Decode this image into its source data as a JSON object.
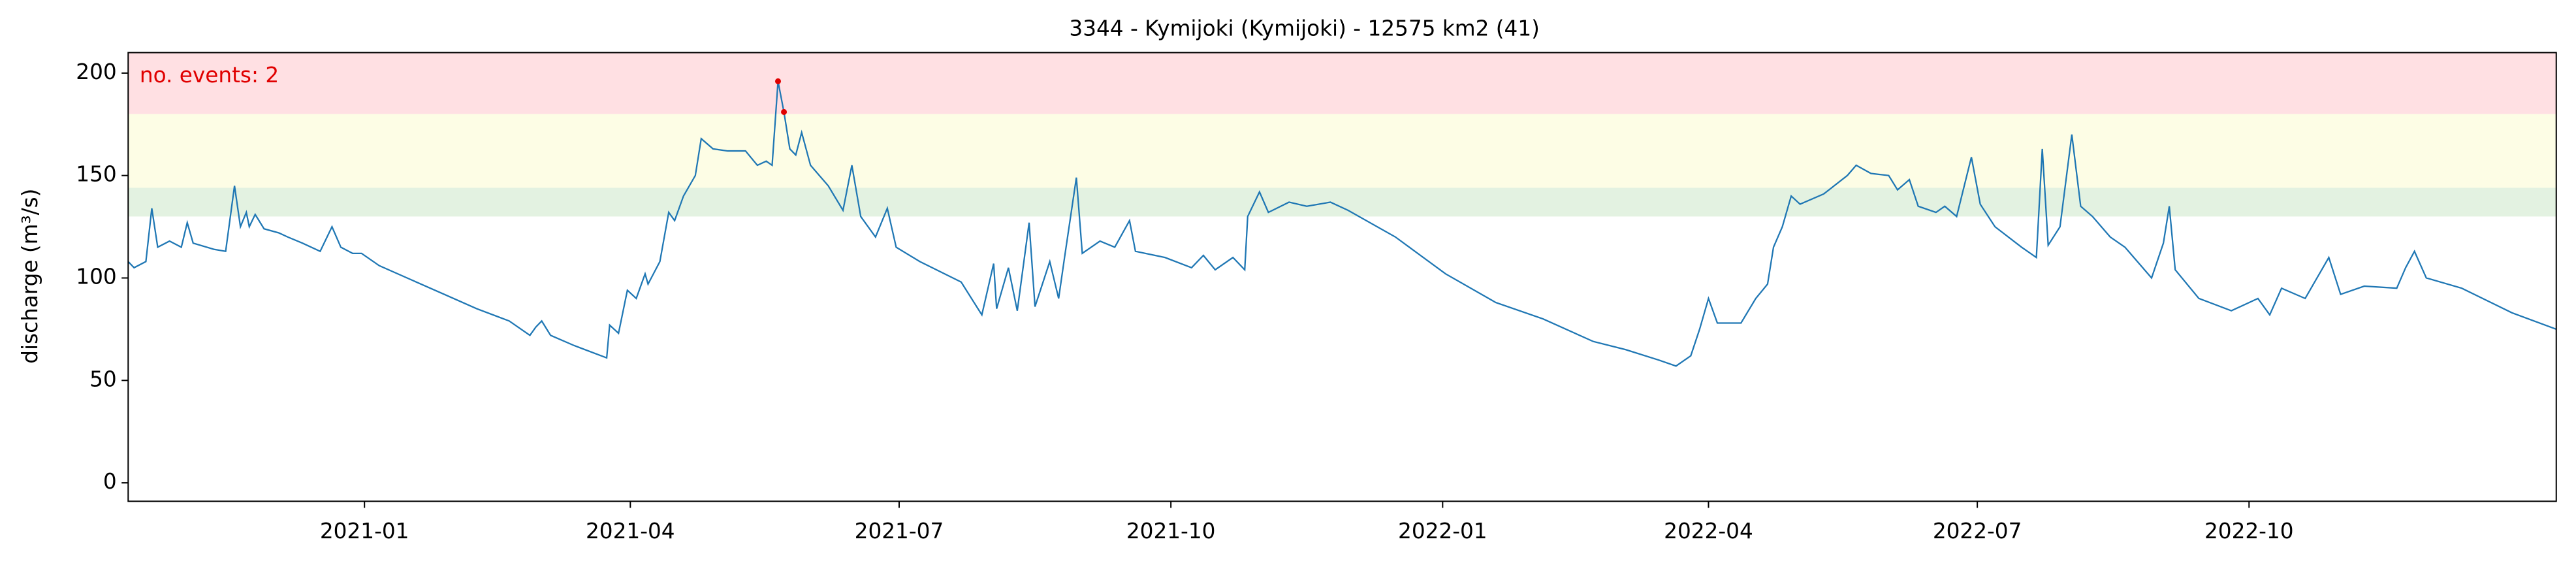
{
  "chart_data": {
    "type": "line",
    "title": "3344 - Kymijoki (Kymijoki) - 12575 km2 (41)",
    "y_label": "discharge (m³/s)",
    "annotation": "no. events: 2",
    "annotation_color": "#e00000",
    "xlim": [
      18548,
      19370
    ],
    "xticks": [
      {
        "value": 18628,
        "label": "2021-01"
      },
      {
        "value": 18718,
        "label": "2021-04"
      },
      {
        "value": 18809,
        "label": "2021-07"
      },
      {
        "value": 18901,
        "label": "2021-10"
      },
      {
        "value": 18993,
        "label": "2022-01"
      },
      {
        "value": 19083,
        "label": "2022-04"
      },
      {
        "value": 19174,
        "label": "2022-07"
      },
      {
        "value": 19266,
        "label": "2022-10"
      }
    ],
    "ylim": [
      -9,
      210
    ],
    "yticks": [
      0,
      50,
      100,
      150,
      200
    ],
    "bands": [
      {
        "range": [
          180,
          210
        ],
        "color": "#ffe0e3"
      },
      {
        "range": [
          144,
          180
        ],
        "color": "#fdfde5"
      },
      {
        "range": [
          130,
          144
        ],
        "color": "#e3f2e1"
      }
    ],
    "series": [
      {
        "type": "line",
        "color": "#1f77b4",
        "x": [
          18548,
          18550,
          18554,
          18556,
          18558,
          18562,
          18566,
          18568,
          18570,
          18577,
          18581,
          18584,
          18586,
          18588,
          18589,
          18591,
          18594,
          18599,
          18602,
          18607,
          18613,
          18617,
          18620,
          18624,
          18627,
          18633,
          18644,
          18655,
          18666,
          18677,
          18684,
          18686,
          18688,
          18691,
          18699,
          18710,
          18711,
          18714,
          18717,
          18720,
          18723,
          18724,
          18728,
          18731,
          18733,
          18736,
          18740,
          18742,
          18746,
          18751,
          18757,
          18761,
          18764,
          18766,
          18768,
          18770,
          18772,
          18774,
          18776,
          18779,
          18785,
          18790,
          18793,
          18796,
          18801,
          18805,
          18808,
          18816,
          18830,
          18837,
          18841,
          18842,
          18846,
          18849,
          18853,
          18855,
          18860,
          18863,
          18865,
          18869,
          18871,
          18877,
          18882,
          18887,
          18889,
          18899,
          18908,
          18912,
          18916,
          18922,
          18926,
          18927,
          18931,
          18934,
          18941,
          18947,
          18955,
          18961,
          18977,
          18994,
          19011,
          19027,
          19044,
          19055,
          19066,
          19072,
          19077,
          19080,
          19083,
          19086,
          19094,
          19099,
          19103,
          19105,
          19108,
          19111,
          19114,
          19122,
          19130,
          19133,
          19138,
          19144,
          19147,
          19151,
          19154,
          19160,
          19163,
          19167,
          19172,
          19175,
          19180,
          19189,
          19194,
          19196,
          19198,
          19202,
          19206,
          19209,
          19213,
          19219,
          19224,
          19233,
          19237,
          19239,
          19241,
          19249,
          19260,
          19269,
          19273,
          19277,
          19285,
          19293,
          19297,
          19305,
          19316,
          19319,
          19322,
          19326,
          19338,
          19355,
          19370
        ],
        "values": [
          108,
          105,
          108,
          134,
          115,
          118,
          115,
          127,
          117,
          114,
          113,
          145,
          125,
          132,
          125,
          131,
          124,
          122,
          120,
          117,
          113,
          125,
          115,
          112,
          112,
          106,
          99,
          92,
          85,
          79,
          72,
          76,
          79,
          72,
          67,
          61,
          77,
          73,
          94,
          90,
          102,
          97,
          108,
          132,
          128,
          140,
          150,
          168,
          163,
          162,
          162,
          155,
          157,
          155,
          196,
          181,
          163,
          160,
          171,
          155,
          145,
          133,
          155,
          130,
          120,
          134,
          115,
          108,
          98,
          82,
          107,
          85,
          105,
          84,
          127,
          86,
          108,
          90,
          110,
          149,
          112,
          118,
          115,
          128,
          113,
          110,
          105,
          111,
          104,
          110,
          104,
          130,
          142,
          132,
          137,
          135,
          137,
          133,
          120,
          102,
          88,
          80,
          69,
          65,
          60,
          57,
          62,
          75,
          90,
          78,
          78,
          90,
          97,
          115,
          125,
          140,
          136,
          141,
          150,
          155,
          151,
          150,
          143,
          148,
          135,
          132,
          135,
          130,
          159,
          136,
          125,
          115,
          110,
          163,
          116,
          125,
          170,
          135,
          130,
          120,
          115,
          100,
          117,
          135,
          104,
          90,
          84,
          90,
          82,
          95,
          90,
          110,
          92,
          96,
          95,
          105,
          113,
          100,
          95,
          83,
          75
        ]
      },
      {
        "type": "scatter",
        "color": "#e00000",
        "x": [
          18768,
          18770
        ],
        "values": [
          196,
          181
        ]
      }
    ]
  }
}
